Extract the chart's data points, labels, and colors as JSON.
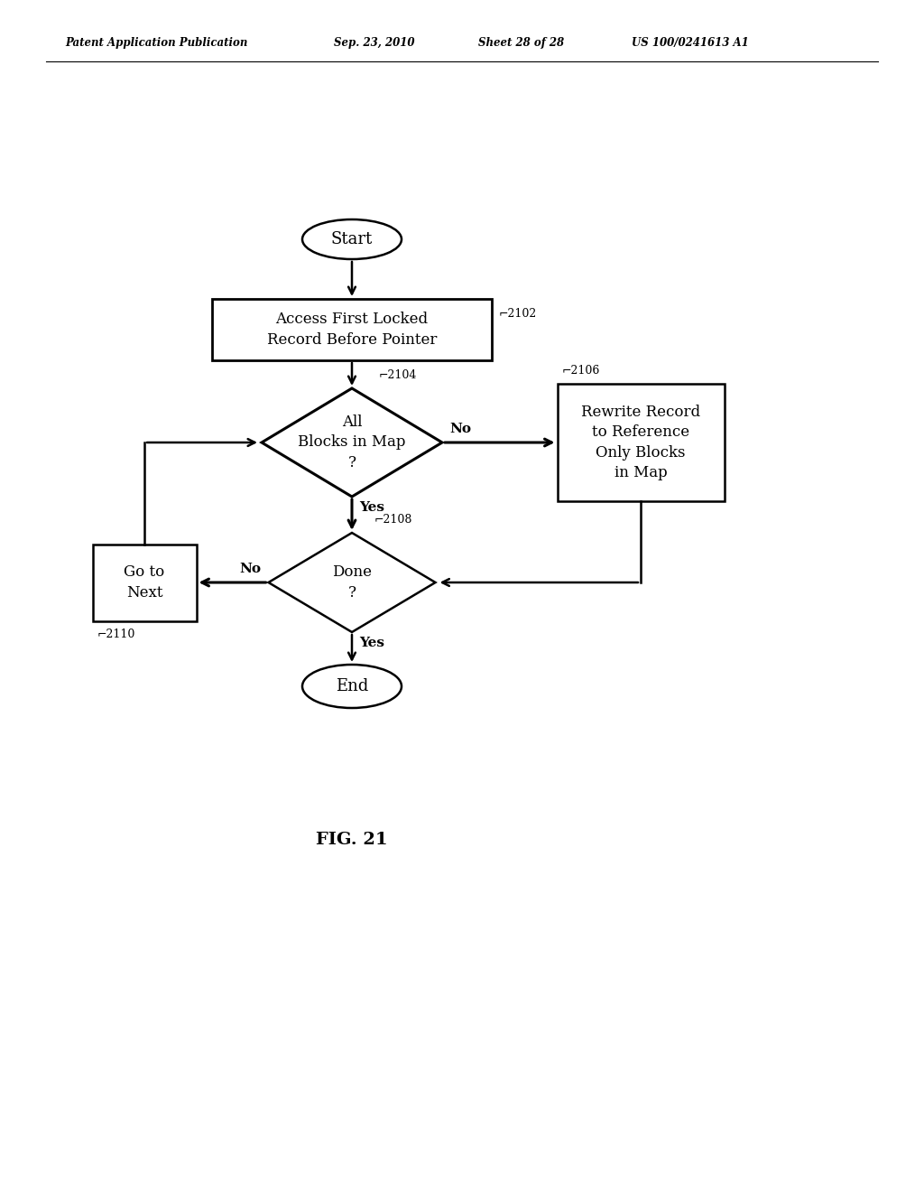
{
  "bg_color": "#ffffff",
  "text_color": "#000000",
  "line_color": "#000000",
  "header_left": "Patent Application Publication",
  "header_mid1": "Sep. 23, 2010",
  "header_mid2": "Sheet 28 of 28",
  "header_right": "US 100/0241613 A1",
  "fig_label": "FIG. 21",
  "start_label": "Start",
  "end_label": "End",
  "box2102_label": "Access First Locked\nRecord Before Pointer",
  "box2102_ref": "2102",
  "diamond2104_label": "All\nBlocks in Map\n?",
  "diamond2104_ref": "2104",
  "box2106_label": "Rewrite Record\nto Reference\nOnly Blocks\nin Map",
  "box2106_ref": "2106",
  "diamond2108_label": "Done\n?",
  "diamond2108_ref": "2108",
  "box2110_label": "Go to\nNext",
  "box2110_ref": "2110",
  "yes_label": "Yes",
  "no_label": "No"
}
